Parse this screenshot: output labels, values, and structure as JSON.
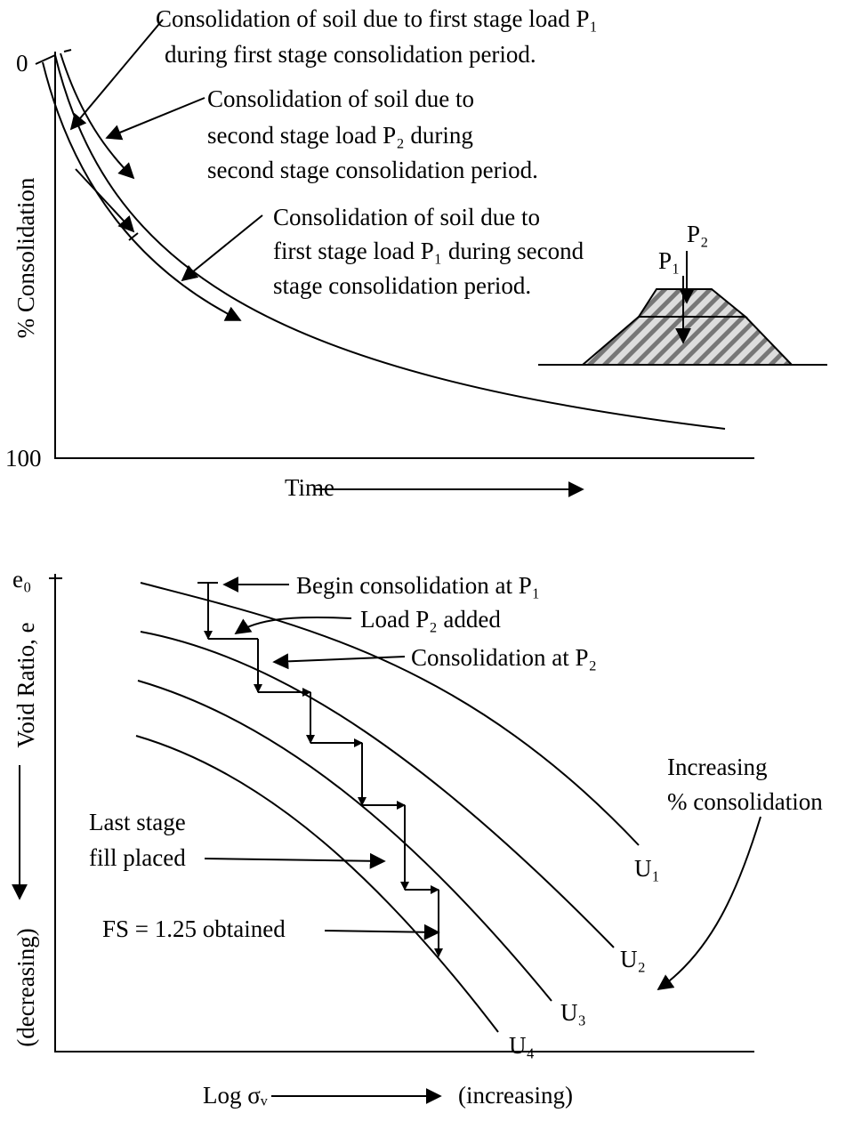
{
  "top": {
    "y_label": "% Consolidation",
    "y_top": "0",
    "y_bottom": "100",
    "x_label": "Time",
    "note1": [
      "Consolidation of soil due to first stage load P₁",
      "during first stage consolidation period."
    ],
    "note2": [
      "Consolidation of soil due to",
      "second stage load P₂ during",
      "second stage consolidation period."
    ],
    "note3": [
      "Consolidation of soil due to",
      "first stage load P₁ during second",
      "stage consolidation period."
    ],
    "load1": "P₁",
    "load2": "P₂"
  },
  "bottom": {
    "y_label": "Void Ratio, e",
    "y_dir": "(decreasing)",
    "y_top": "e₀",
    "x_label": "Log σᵥ",
    "x_dir": "(increasing)",
    "begin": "Begin consolidation at P₁",
    "added": "Load P₂ added",
    "cons": "Consolidation at P₂",
    "increasing": [
      "Increasing",
      "% consolidation"
    ],
    "last": [
      "Last stage",
      "fill placed"
    ],
    "fs": "FS = 1.25 obtained",
    "curves": [
      "U₁",
      "U₂",
      "U₃",
      "U₄"
    ]
  }
}
